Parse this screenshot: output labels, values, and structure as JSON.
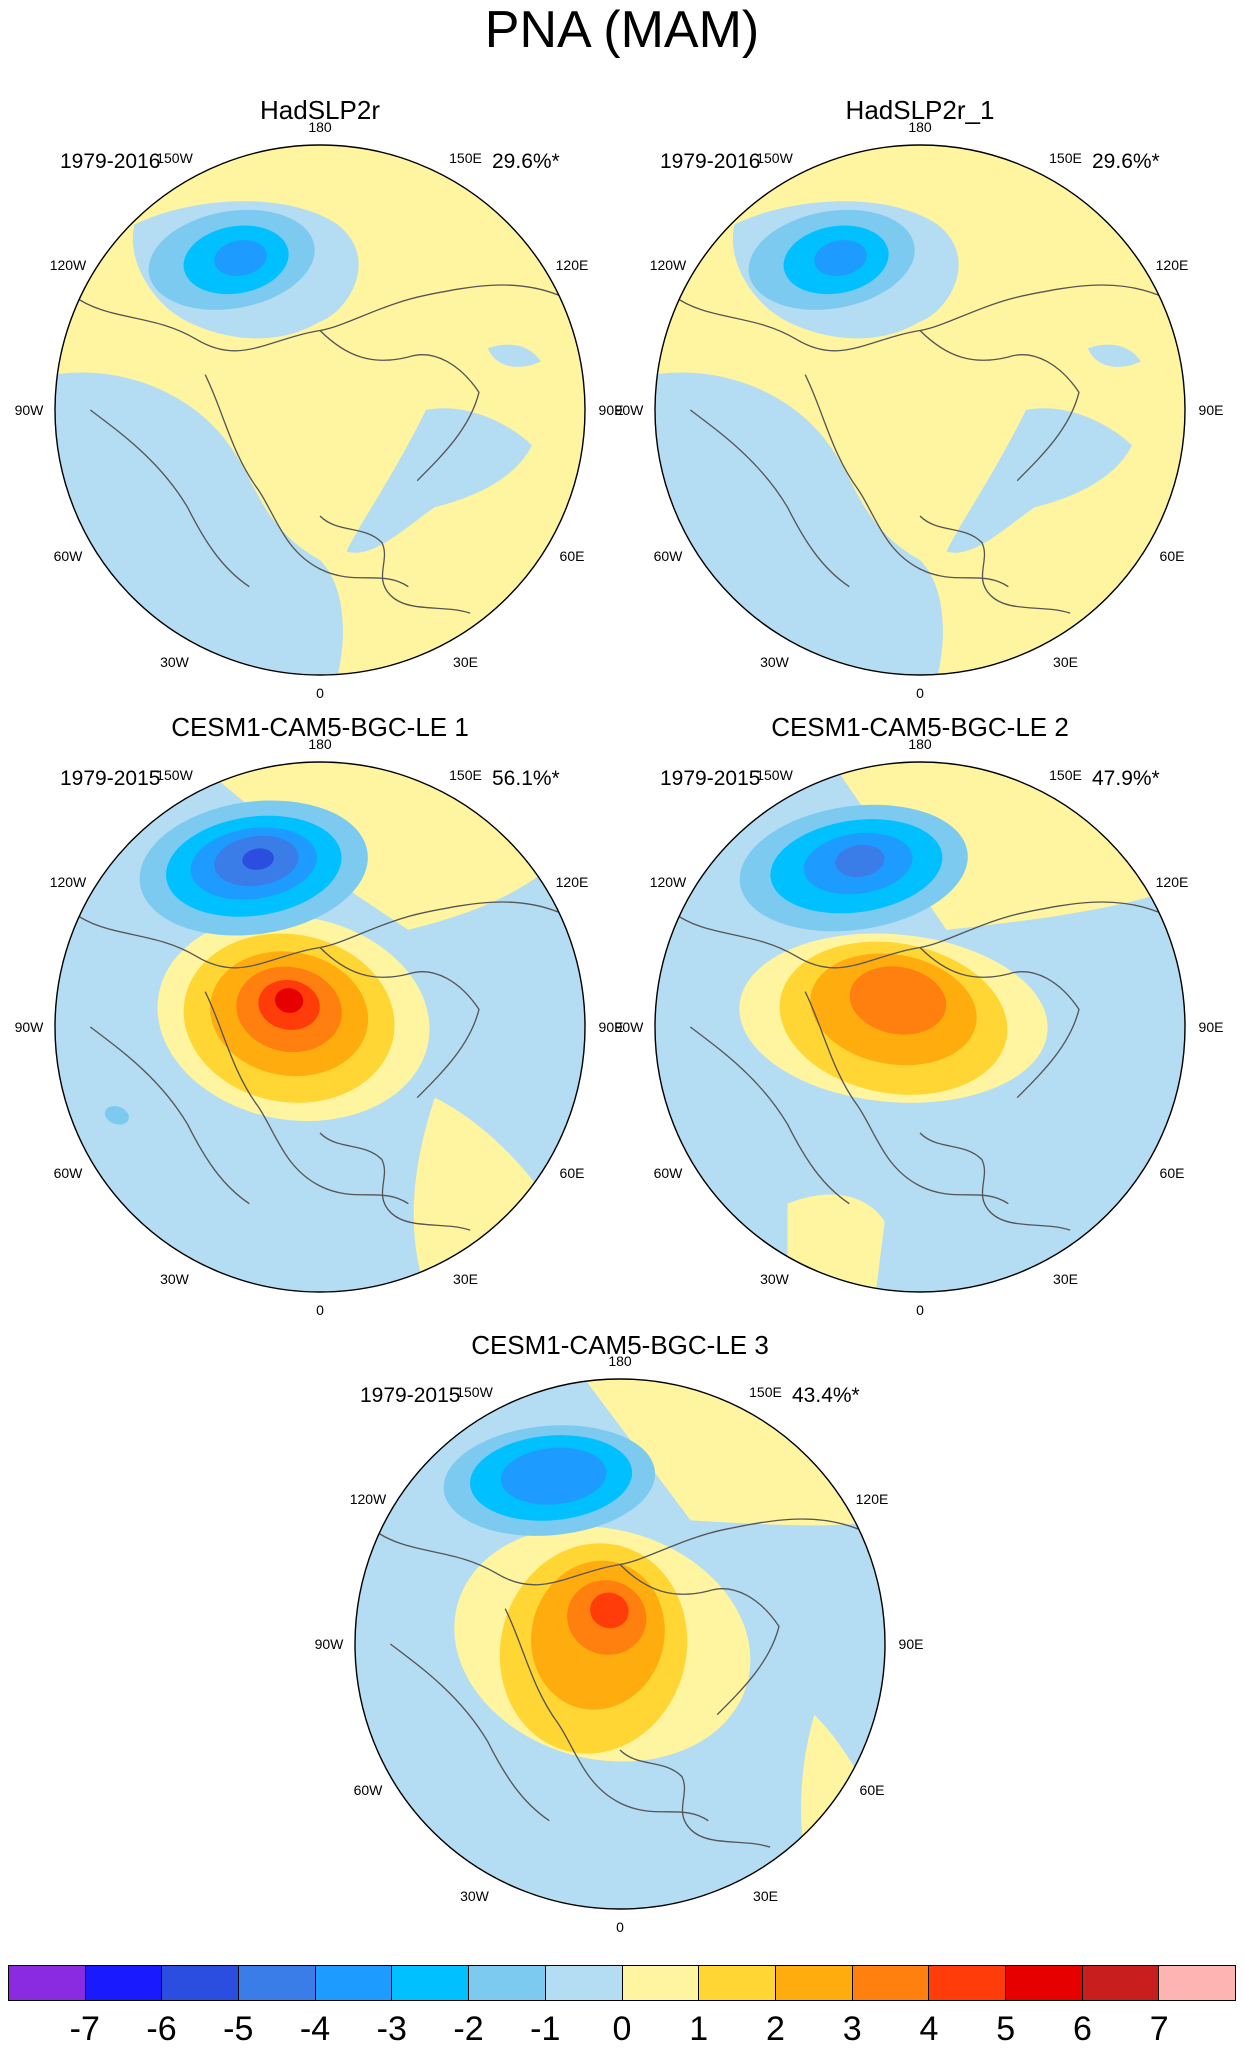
{
  "title": "PNA (MAM)",
  "panels": [
    {
      "name": "HadSLP2r",
      "period": "1979-2016",
      "variance": "29.6%*",
      "pattern": "obs"
    },
    {
      "name": "HadSLP2r_1",
      "period": "1979-2016",
      "variance": "29.6%*",
      "pattern": "obs"
    },
    {
      "name": "CESM1-CAM5-BGC-LE 1",
      "period": "1979-2015",
      "variance": "56.1%*",
      "pattern": "le1"
    },
    {
      "name": "CESM1-CAM5-BGC-LE 2",
      "period": "1979-2015",
      "variance": "47.9%*",
      "pattern": "le2"
    },
    {
      "name": "CESM1-CAM5-BGC-LE 3",
      "period": "1979-2015",
      "variance": "43.4%*",
      "pattern": "le3"
    }
  ],
  "longitude_labels": [
    "180",
    "150E",
    "120E",
    "90E",
    "60E",
    "30E",
    "0",
    "30W",
    "60W",
    "90W",
    "120W",
    "150W"
  ],
  "colorbar": {
    "labels": [
      "-7",
      "-6",
      "-5",
      "-4",
      "-3",
      "-2",
      "-1",
      "0",
      "1",
      "2",
      "3",
      "4",
      "5",
      "6",
      "7"
    ],
    "colors": [
      "#8a2be2",
      "#1a1aff",
      "#2b4de0",
      "#3a7ce8",
      "#1e9bff",
      "#00c0ff",
      "#7ccaf0",
      "#b4dcf2",
      "#fff5a0",
      "#ffd633",
      "#ffac0f",
      "#ff7f0f",
      "#ff3c0a",
      "#e60000",
      "#c81e1e",
      "#ffb4b4"
    ]
  },
  "map_colors": {
    "background_positive": "#fff5a0",
    "background_negative": "#b4dcf2",
    "coast": "#555555"
  }
}
